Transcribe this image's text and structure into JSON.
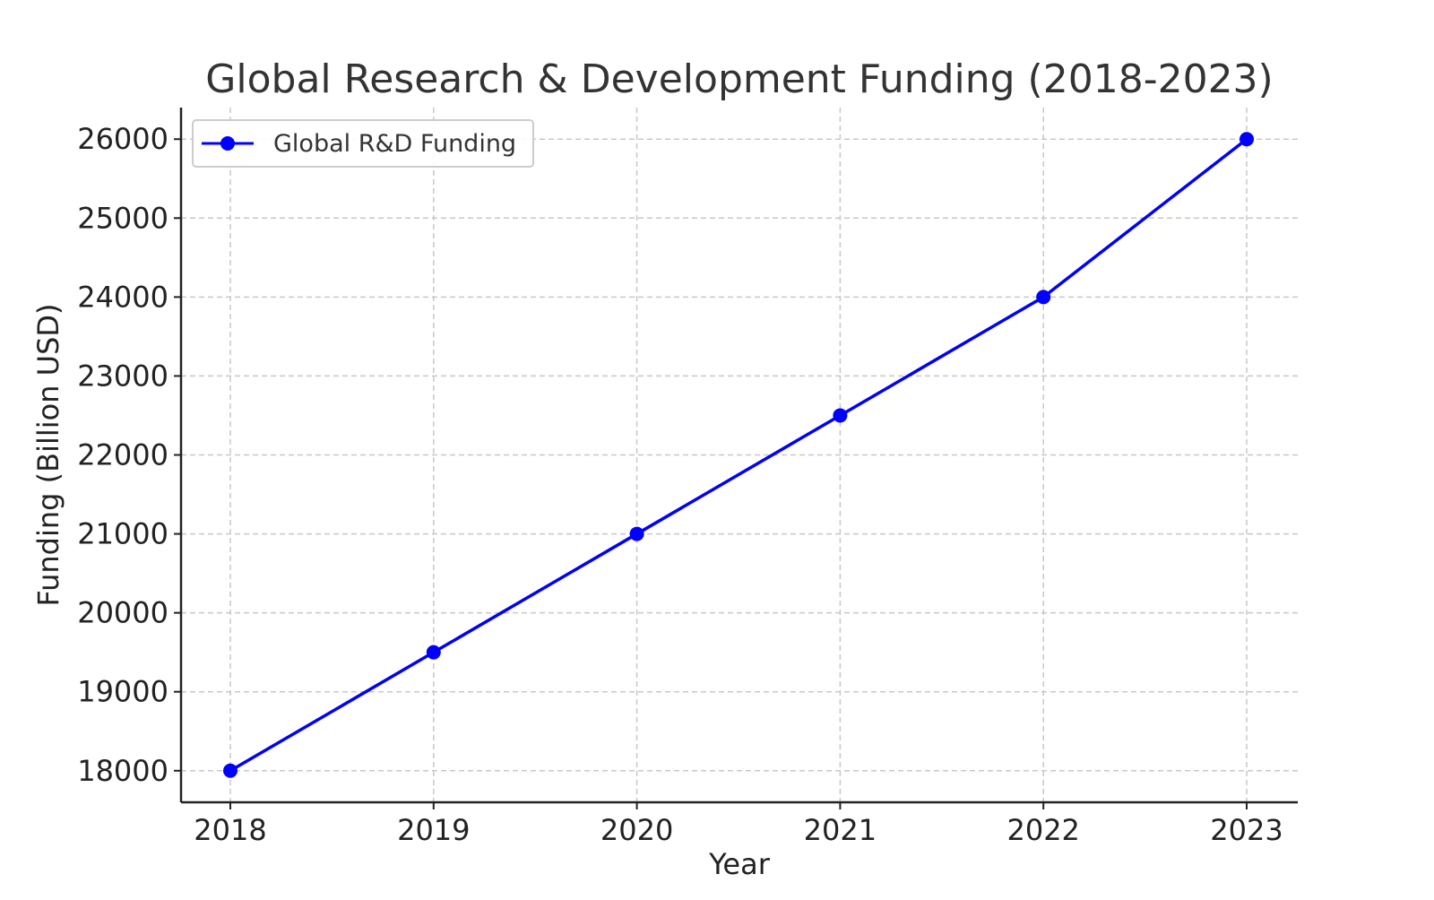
{
  "chart_data": {
    "type": "line",
    "title": "Global Research & Development Funding (2018-2023)",
    "xlabel": "Year",
    "ylabel": "Funding (Billion USD)",
    "x": [
      "2018",
      "2019",
      "2020",
      "2021",
      "2022",
      "2023"
    ],
    "series": [
      {
        "name": "Global R&D Funding",
        "values": [
          18000,
          19500,
          21000,
          22500,
          24000,
          26000
        ],
        "color": "#0000ff",
        "marker": "circle"
      }
    ],
    "yticks": [
      18000,
      19000,
      20000,
      21000,
      22000,
      23000,
      24000,
      25000,
      26000
    ],
    "ylim": [
      17600,
      26400
    ],
    "grid": true,
    "grid_style": "dashed",
    "legend_position": "top-left"
  }
}
